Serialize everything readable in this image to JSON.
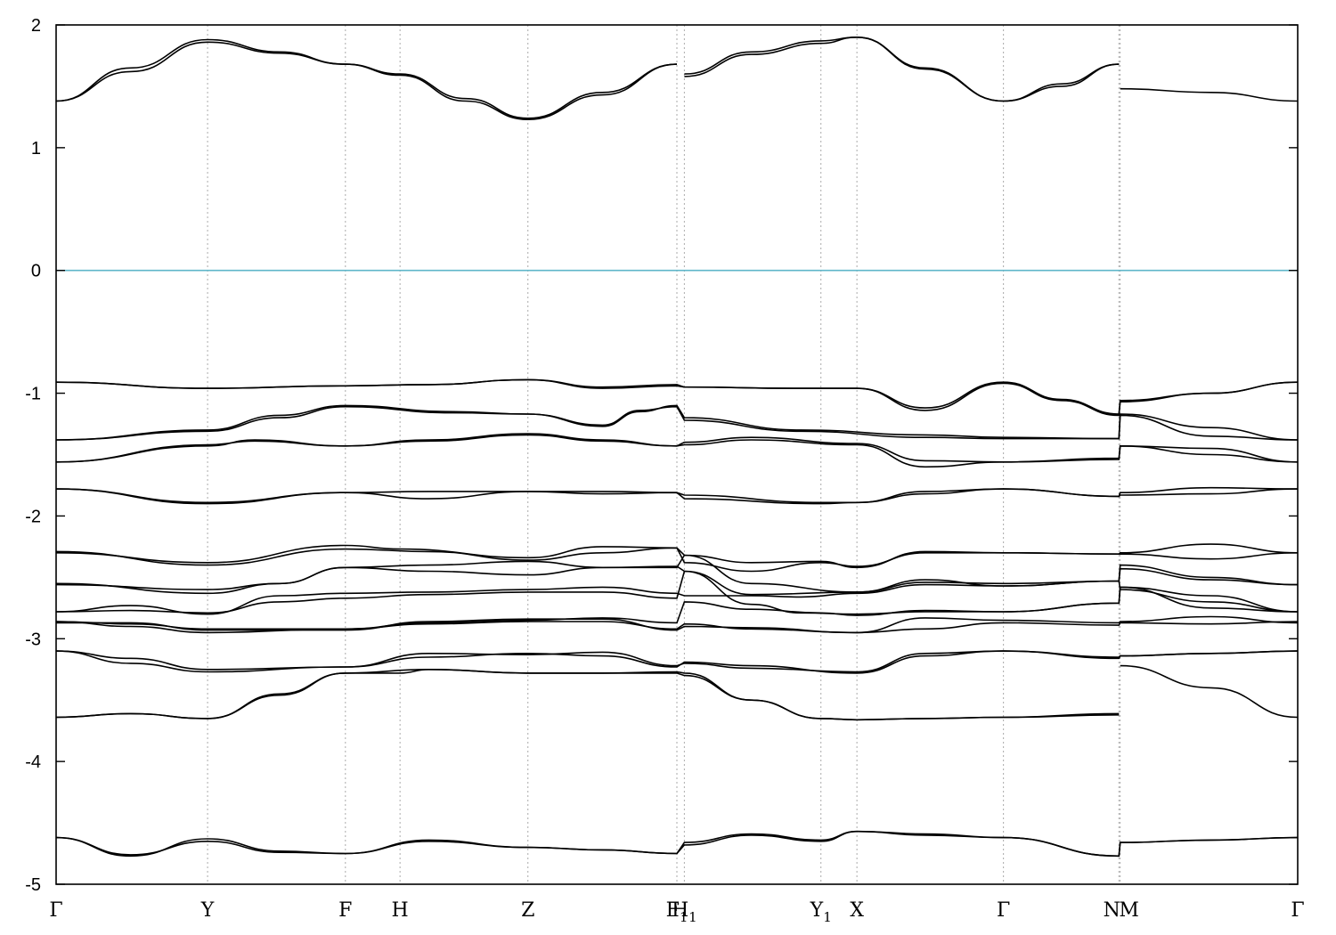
{
  "chart_data": {
    "type": "line",
    "title": "",
    "xlabel": "",
    "ylabel": "",
    "ylim": [
      -5,
      2
    ],
    "yticks": [
      2,
      1,
      0,
      -1,
      -2,
      -3,
      -4,
      -5
    ],
    "xlim": [
      0,
      1000
    ],
    "grid": "vertical dotted lines at k-points",
    "fermi_level": {
      "y": 0,
      "color": "#5fb6c9"
    },
    "line_color": "#000000",
    "kpoints": [
      {
        "x": 0,
        "label": "Γ",
        "sub": ""
      },
      {
        "x": 122,
        "label": "Y",
        "sub": ""
      },
      {
        "x": 233,
        "label": "F",
        "sub": ""
      },
      {
        "x": 277,
        "label": "H",
        "sub": ""
      },
      {
        "x": 380,
        "label": "Z",
        "sub": ""
      },
      {
        "x": 500,
        "label": "F",
        "sub": "1"
      },
      {
        "x": 506,
        "label": "H",
        "sub": "1"
      },
      {
        "x": 616,
        "label": "Y",
        "sub": "1"
      },
      {
        "x": 645,
        "label": "X",
        "sub": ""
      },
      {
        "x": 763,
        "label": "Γ",
        "sub": ""
      },
      {
        "x": 856,
        "label": "N",
        "sub": ""
      },
      {
        "x": 857,
        "label": "M",
        "sub": ""
      },
      {
        "x": 1000,
        "label": "Γ",
        "sub": ""
      }
    ],
    "series": [
      {
        "x": [
          0,
          60,
          122,
          180,
          233,
          277,
          330,
          380,
          440,
          500
        ],
        "values": [
          1.38,
          1.65,
          1.88,
          1.78,
          1.68,
          1.6,
          1.4,
          1.24,
          1.45,
          1.68
        ]
      },
      {
        "x": [
          0,
          60,
          122,
          180,
          233,
          277,
          330,
          380,
          440,
          500
        ],
        "values": [
          1.38,
          1.62,
          1.86,
          1.77,
          1.68,
          1.59,
          1.38,
          1.23,
          1.43,
          1.68
        ]
      },
      {
        "x": [
          506,
          560,
          616,
          645,
          700,
          763,
          810,
          856
        ],
        "values": [
          1.6,
          1.78,
          1.87,
          1.9,
          1.65,
          1.38,
          1.5,
          1.68
        ]
      },
      {
        "x": [
          506,
          560,
          616,
          645,
          700,
          763,
          810,
          856
        ],
        "values": [
          1.58,
          1.76,
          1.85,
          1.9,
          1.64,
          1.38,
          1.52,
          1.68
        ]
      },
      {
        "x": [
          857,
          930,
          1000
        ],
        "values": [
          1.48,
          1.45,
          1.38
        ]
      },
      {
        "x": [
          0,
          122,
          233,
          300,
          380,
          440,
          500,
          506,
          600,
          645,
          700,
          763,
          810,
          856,
          857,
          930,
          1000
        ],
        "values": [
          -0.91,
          -0.96,
          -0.94,
          -0.93,
          -0.89,
          -0.95,
          -0.93,
          -0.95,
          -0.96,
          -0.96,
          -1.12,
          -0.91,
          -1.05,
          -1.17,
          -1.06,
          -1.0,
          -0.91
        ]
      },
      {
        "x": [
          0,
          122,
          233,
          300,
          380,
          440,
          500,
          506,
          600,
          645,
          700,
          763,
          810,
          856,
          857,
          930,
          1000
        ],
        "values": [
          -0.91,
          -0.96,
          -0.94,
          -0.93,
          -0.89,
          -0.96,
          -0.94,
          -0.95,
          -0.96,
          -0.96,
          -1.14,
          -0.92,
          -1.06,
          -1.18,
          -1.07,
          -1.0,
          -0.91
        ]
      },
      {
        "x": [
          0,
          122,
          180,
          233,
          320,
          380,
          440,
          470,
          500,
          506,
          600,
          700,
          763,
          856,
          857,
          930,
          1000
        ],
        "values": [
          -1.38,
          -1.3,
          -1.18,
          -1.1,
          -1.15,
          -1.17,
          -1.27,
          -1.15,
          -1.1,
          -1.2,
          -1.3,
          -1.34,
          -1.36,
          -1.37,
          -1.17,
          -1.28,
          -1.38
        ]
      },
      {
        "x": [
          0,
          122,
          180,
          233,
          320,
          380,
          440,
          470,
          500,
          506,
          600,
          700,
          763,
          856,
          857,
          930,
          1000
        ],
        "values": [
          -1.38,
          -1.31,
          -1.2,
          -1.11,
          -1.16,
          -1.17,
          -1.26,
          -1.14,
          -1.11,
          -1.22,
          -1.31,
          -1.36,
          -1.37,
          -1.37,
          -1.18,
          -1.35,
          -1.38
        ]
      },
      {
        "x": [
          0,
          122,
          160,
          233,
          300,
          380,
          440,
          500,
          506,
          560,
          645,
          700,
          763,
          856,
          857,
          930,
          1000
        ],
        "values": [
          -1.56,
          -1.43,
          -1.38,
          -1.43,
          -1.38,
          -1.33,
          -1.38,
          -1.43,
          -1.4,
          -1.36,
          -1.41,
          -1.55,
          -1.56,
          -1.53,
          -1.43,
          -1.45,
          -1.56
        ]
      },
      {
        "x": [
          0,
          122,
          160,
          233,
          300,
          380,
          440,
          500,
          506,
          560,
          645,
          700,
          763,
          856,
          857,
          930,
          1000
        ],
        "values": [
          -1.56,
          -1.42,
          -1.39,
          -1.43,
          -1.39,
          -1.34,
          -1.39,
          -1.43,
          -1.42,
          -1.38,
          -1.42,
          -1.6,
          -1.56,
          -1.54,
          -1.43,
          -1.5,
          -1.56
        ]
      },
      {
        "x": [
          0,
          122,
          233,
          300,
          380,
          440,
          500,
          506,
          616,
          645,
          700,
          763,
          856,
          857,
          930,
          1000
        ],
        "values": [
          -1.78,
          -1.89,
          -1.81,
          -1.8,
          -1.8,
          -1.82,
          -1.81,
          -1.83,
          -1.89,
          -1.89,
          -1.82,
          -1.78,
          -1.84,
          -1.83,
          -1.82,
          -1.78
        ]
      },
      {
        "x": [
          0,
          122,
          233,
          300,
          380,
          440,
          500,
          506,
          616,
          645,
          700,
          763,
          856,
          857,
          930,
          1000
        ],
        "values": [
          -1.78,
          -1.9,
          -1.81,
          -1.86,
          -1.8,
          -1.8,
          -1.81,
          -1.86,
          -1.9,
          -1.89,
          -1.8,
          -1.78,
          -1.84,
          -1.81,
          -1.77,
          -1.78
        ]
      },
      {
        "x": [
          0,
          122,
          233,
          300,
          380,
          440,
          500,
          506,
          560,
          616,
          645,
          700,
          763,
          856,
          857,
          930,
          1000
        ],
        "values": [
          -2.29,
          -2.4,
          -2.27,
          -2.29,
          -2.36,
          -2.3,
          -2.26,
          -2.32,
          -2.38,
          -2.37,
          -2.42,
          -2.29,
          -2.3,
          -2.31,
          -2.3,
          -2.23,
          -2.3
        ]
      },
      {
        "x": [
          0,
          122,
          233,
          277,
          380,
          440,
          500,
          506,
          560,
          616,
          645,
          700,
          763,
          856,
          857,
          930,
          1000
        ],
        "values": [
          -2.3,
          -2.38,
          -2.24,
          -2.27,
          -2.34,
          -2.25,
          -2.26,
          -2.38,
          -2.45,
          -2.38,
          -2.41,
          -2.3,
          -2.3,
          -2.31,
          -2.31,
          -2.35,
          -2.3
        ]
      },
      {
        "x": [
          0,
          122,
          180,
          233,
          300,
          380,
          440,
          500,
          506,
          560,
          645,
          700,
          763,
          856,
          857,
          930,
          1000
        ],
        "values": [
          -2.56,
          -2.6,
          -2.55,
          -2.42,
          -2.4,
          -2.37,
          -2.42,
          -2.42,
          -2.32,
          -2.55,
          -2.62,
          -2.52,
          -2.57,
          -2.53,
          -2.4,
          -2.5,
          -2.56
        ]
      },
      {
        "x": [
          0,
          122,
          180,
          233,
          300,
          380,
          440,
          500,
          506,
          560,
          645,
          700,
          763,
          856,
          857,
          930,
          1000
        ],
        "values": [
          -2.55,
          -2.63,
          -2.55,
          -2.42,
          -2.45,
          -2.48,
          -2.42,
          -2.41,
          -2.45,
          -2.64,
          -2.62,
          -2.54,
          -2.55,
          -2.53,
          -2.43,
          -2.52,
          -2.56
        ]
      },
      {
        "x": [
          0,
          60,
          122,
          180,
          233,
          300,
          380,
          440,
          500,
          506,
          560,
          600,
          645,
          700,
          763,
          856,
          857,
          930,
          1000
        ],
        "values": [
          -2.78,
          -2.73,
          -2.8,
          -2.65,
          -2.63,
          -2.62,
          -2.6,
          -2.58,
          -2.63,
          -2.65,
          -2.65,
          -2.66,
          -2.63,
          -2.56,
          -2.57,
          -2.53,
          -2.6,
          -2.7,
          -2.78
        ]
      },
      {
        "x": [
          0,
          60,
          122,
          180,
          233,
          300,
          380,
          440,
          500,
          506,
          560,
          600,
          645,
          700,
          763,
          856,
          857,
          930,
          1000
        ],
        "values": [
          -2.78,
          -2.77,
          -2.79,
          -2.7,
          -2.67,
          -2.64,
          -2.62,
          -2.62,
          -2.67,
          -2.45,
          -2.72,
          -2.79,
          -2.8,
          -2.78,
          -2.78,
          -2.71,
          -2.58,
          -2.65,
          -2.78
        ]
      },
      {
        "x": [
          0,
          60,
          122,
          233,
          300,
          380,
          440,
          500,
          506,
          560,
          616,
          645,
          700,
          763,
          856,
          857,
          930,
          1000
        ],
        "values": [
          -2.86,
          -2.88,
          -2.92,
          -2.92,
          -2.87,
          -2.85,
          -2.83,
          -2.87,
          -2.7,
          -2.76,
          -2.79,
          -2.81,
          -2.77,
          -2.78,
          -2.71,
          -2.58,
          -2.75,
          -2.78
        ]
      },
      {
        "x": [
          0,
          60,
          122,
          233,
          300,
          380,
          440,
          500,
          506,
          560,
          645,
          700,
          763,
          856,
          857,
          930,
          1000
        ],
        "values": [
          -2.87,
          -2.87,
          -2.93,
          -2.93,
          -2.86,
          -2.84,
          -2.84,
          -2.93,
          -2.9,
          -2.91,
          -2.95,
          -2.83,
          -2.85,
          -2.87,
          -2.86,
          -2.82,
          -2.87
        ]
      },
      {
        "x": [
          0,
          60,
          122,
          233,
          300,
          380,
          440,
          500,
          506,
          560,
          645,
          700,
          763,
          856,
          857,
          930,
          1000
        ],
        "values": [
          -2.86,
          -2.9,
          -2.95,
          -2.92,
          -2.88,
          -2.86,
          -2.86,
          -2.92,
          -2.88,
          -2.92,
          -2.95,
          -2.92,
          -2.87,
          -2.89,
          -2.87,
          -2.88,
          -2.86
        ]
      },
      {
        "x": [
          0,
          60,
          122,
          233,
          300,
          380,
          440,
          500,
          506,
          560,
          645,
          700,
          763,
          856,
          857,
          930,
          1000
        ],
        "values": [
          -3.1,
          -3.16,
          -3.25,
          -3.23,
          -3.15,
          -3.12,
          -3.14,
          -3.23,
          -3.19,
          -3.22,
          -3.28,
          -3.14,
          -3.1,
          -3.15,
          -3.14,
          -3.12,
          -3.1
        ]
      },
      {
        "x": [
          0,
          60,
          122,
          233,
          300,
          380,
          440,
          500,
          506,
          560,
          645,
          700,
          763,
          856,
          857,
          930,
          1000
        ],
        "values": [
          -3.1,
          -3.2,
          -3.27,
          -3.23,
          -3.12,
          -3.13,
          -3.11,
          -3.22,
          -3.2,
          -3.24,
          -3.27,
          -3.12,
          -3.1,
          -3.16,
          -3.14,
          -3.12,
          -3.1
        ]
      },
      {
        "x": [
          0,
          60,
          122,
          180,
          233,
          300,
          380,
          440,
          500,
          506,
          560,
          616,
          645,
          700,
          763,
          856
        ],
        "values": [
          -3.64,
          -3.61,
          -3.65,
          -3.45,
          -3.28,
          -3.25,
          -3.28,
          -3.28,
          -3.27,
          -3.28,
          -3.5,
          -3.65,
          -3.66,
          -3.65,
          -3.64,
          -3.61
        ]
      },
      {
        "x": [
          0,
          60,
          122,
          180,
          233,
          277,
          300,
          380,
          440,
          500,
          506,
          560,
          616,
          645,
          700,
          763,
          856
        ],
        "values": [
          -3.64,
          -3.61,
          -3.65,
          -3.46,
          -3.28,
          -3.28,
          -3.25,
          -3.28,
          -3.28,
          -3.28,
          -3.3,
          -3.5,
          -3.65,
          -3.66,
          -3.65,
          -3.64,
          -3.62
        ]
      },
      {
        "x": [
          857,
          930,
          1000
        ],
        "values": [
          -3.22,
          -3.4,
          -3.64
        ]
      },
      {
        "x": [
          0,
          60,
          122,
          180,
          233,
          300,
          380,
          440,
          500,
          506,
          560,
          616,
          645,
          700,
          763,
          856,
          857,
          930,
          1000
        ],
        "values": [
          -4.62,
          -4.76,
          -4.65,
          -4.74,
          -4.75,
          -4.65,
          -4.7,
          -4.72,
          -4.75,
          -4.68,
          -4.6,
          -4.65,
          -4.57,
          -4.59,
          -4.62,
          -4.77,
          -4.66,
          -4.64,
          -4.62
        ]
      },
      {
        "x": [
          0,
          60,
          122,
          180,
          233,
          300,
          380,
          440,
          500,
          506,
          560,
          616,
          645,
          700,
          763,
          856,
          857,
          930,
          1000
        ],
        "values": [
          -4.62,
          -4.77,
          -4.63,
          -4.73,
          -4.75,
          -4.64,
          -4.7,
          -4.72,
          -4.75,
          -4.66,
          -4.59,
          -4.64,
          -4.57,
          -4.6,
          -4.62,
          -4.77,
          -4.66,
          -4.64,
          -4.62
        ]
      }
    ]
  }
}
